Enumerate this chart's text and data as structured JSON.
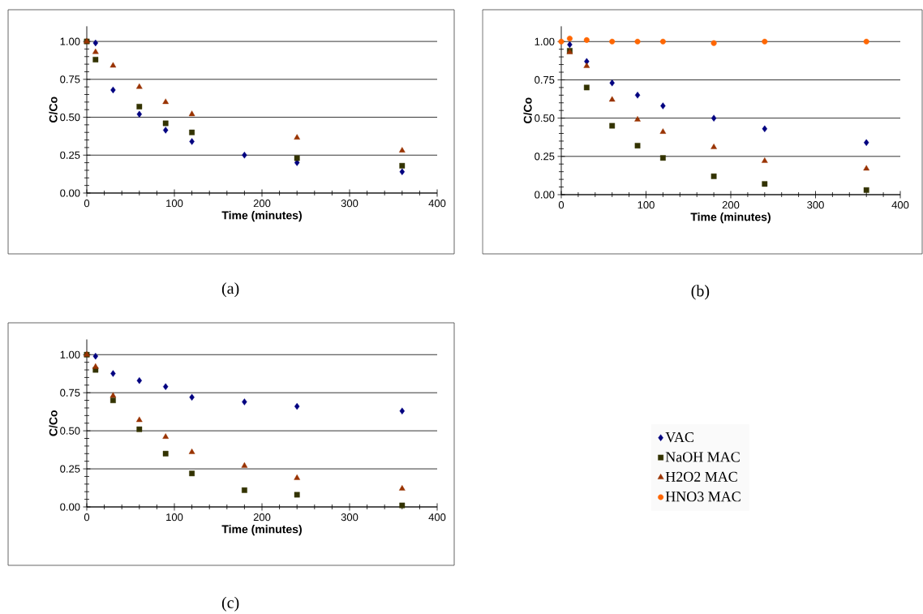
{
  "chart_data": [
    {
      "type": "scatter",
      "xlabel": "Time (minutes)",
      "ylabel": "C/Co",
      "annotations": [
        "(a)"
      ],
      "x": [
        0,
        10,
        30,
        60,
        90,
        120,
        180,
        240,
        360
      ],
      "xlim": [
        0,
        400
      ],
      "xticks": [
        0,
        100,
        200,
        300,
        400
      ],
      "ylim": [
        0,
        1.1
      ],
      "yticks": [
        {
          "value": 0,
          "label": "0.00"
        },
        {
          "value": 0.25,
          "label": "0.25"
        },
        {
          "value": 0.5,
          "label": "0.50"
        },
        {
          "value": 0.75,
          "label": "0.75"
        },
        {
          "value": 1,
          "label": "1.00"
        }
      ],
      "grid": "y",
      "series": [
        {
          "color": "#000080",
          "marker": "diamond",
          "values": [
            null,
            0.99,
            0.68,
            0.52,
            0.415,
            0.34,
            0.25,
            0.2,
            0.14
          ]
        },
        {
          "color": "#333300",
          "marker": "square",
          "values": [
            1.0,
            0.88,
            null,
            0.57,
            0.46,
            0.4,
            null,
            0.23,
            0.18
          ]
        },
        {
          "color": "#993300",
          "marker": "triangle",
          "values": [
            1.0,
            0.93,
            0.84,
            0.7,
            0.6,
            0.52,
            null,
            0.365,
            0.28
          ]
        }
      ]
    },
    {
      "type": "scatter",
      "xlabel": "Time (minutes)",
      "ylabel": "C/Co",
      "annotations": [
        "(b)"
      ],
      "x": [
        0,
        10,
        30,
        60,
        90,
        120,
        180,
        240,
        360
      ],
      "xlim": [
        0,
        400
      ],
      "xticks": [
        0,
        100,
        200,
        300,
        400
      ],
      "ylim": [
        0,
        1.1
      ],
      "yticks": [
        {
          "value": 0,
          "label": "0.00"
        },
        {
          "value": 0.25,
          "label": "0.25"
        },
        {
          "value": 0.5,
          "label": "0.50"
        },
        {
          "value": 0.75,
          "label": "0.75"
        },
        {
          "value": 1,
          "label": "1.00"
        }
      ],
      "grid": "y",
      "legend": "bottom",
      "series": [
        {
          "name": "VAC",
          "color": "#000080",
          "marker": "diamond",
          "values": [
            null,
            0.98,
            0.87,
            0.73,
            0.65,
            0.58,
            0.5,
            0.43,
            0.34
          ]
        },
        {
          "name": "NaOH MAC",
          "color": "#333300",
          "marker": "square",
          "values": [
            null,
            0.94,
            0.7,
            0.45,
            0.32,
            0.24,
            0.12,
            0.07,
            0.03
          ]
        },
        {
          "name": "H2O2 MAC",
          "color": "#993300",
          "marker": "triangle",
          "values": [
            null,
            0.93,
            0.84,
            0.62,
            0.49,
            0.41,
            0.31,
            0.22,
            0.17
          ]
        },
        {
          "name": "HNO3 MAC",
          "color": "#ff6600",
          "marker": "circle",
          "values": [
            1.0,
            1.02,
            1.01,
            1.0,
            1.0,
            1.0,
            0.99,
            1.0,
            1.0
          ]
        }
      ]
    },
    {
      "type": "scatter",
      "xlabel": "Time (minutes)",
      "ylabel": "C/Co",
      "annotations": [
        "(c)"
      ],
      "x": [
        0,
        10,
        30,
        60,
        90,
        120,
        180,
        240,
        360
      ],
      "xlim": [
        0,
        400
      ],
      "xticks": [
        0,
        100,
        200,
        300,
        400
      ],
      "ylim": [
        0,
        1.1
      ],
      "yticks": [
        {
          "value": 0,
          "label": "0.00"
        },
        {
          "value": 0.25,
          "label": "0.25"
        },
        {
          "value": 0.5,
          "label": "0.50"
        },
        {
          "value": 0.75,
          "label": "0.75"
        },
        {
          "value": 1,
          "label": "1.00"
        }
      ],
      "grid": "y",
      "series": [
        {
          "color": "#000080",
          "marker": "diamond",
          "values": [
            null,
            0.99,
            0.876,
            0.83,
            0.79,
            0.72,
            0.69,
            0.66,
            0.63
          ]
        },
        {
          "color": "#333300",
          "marker": "square",
          "values": [
            1.0,
            0.9,
            0.7,
            0.51,
            0.35,
            0.22,
            0.11,
            0.08,
            0.01
          ]
        },
        {
          "color": "#993300",
          "marker": "triangle",
          "values": [
            1.0,
            0.92,
            0.73,
            0.57,
            0.46,
            0.36,
            0.27,
            0.19,
            0.12
          ]
        }
      ]
    }
  ]
}
